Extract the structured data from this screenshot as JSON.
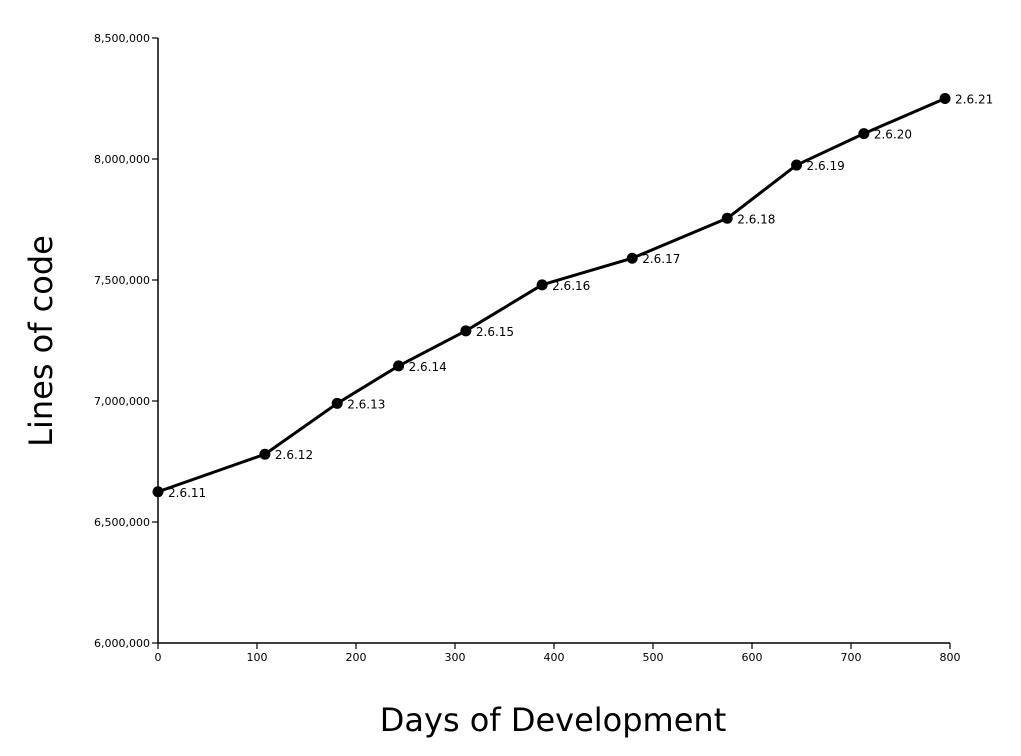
{
  "chart_data": {
    "type": "line",
    "title": "",
    "xlabel": "Days of Development",
    "ylabel": "Lines of code",
    "xlim": [
      0,
      800
    ],
    "ylim": [
      6000000,
      8500000
    ],
    "xticks": [
      0,
      100,
      200,
      300,
      400,
      500,
      600,
      700,
      800
    ],
    "xtick_labels": [
      "0",
      "100",
      "200",
      "300",
      "400",
      "500",
      "600",
      "700",
      "800"
    ],
    "yticks": [
      6000000,
      6500000,
      7000000,
      7500000,
      8000000,
      8500000
    ],
    "ytick_labels": [
      "6,000,000",
      "6,500,000",
      "7,000,000",
      "7,500,000",
      "8,000,000",
      "8,500,000"
    ],
    "grid": false,
    "series": [
      {
        "color": "#000000",
        "points": [
          {
            "x": 0,
            "y": 6625000,
            "label": "2.6.11"
          },
          {
            "x": 108,
            "y": 6780000,
            "label": "2.6.12"
          },
          {
            "x": 181,
            "y": 6990000,
            "label": "2.6.13"
          },
          {
            "x": 243,
            "y": 7145000,
            "label": "2.6.14"
          },
          {
            "x": 311,
            "y": 7290000,
            "label": "2.6.15"
          },
          {
            "x": 388,
            "y": 7480000,
            "label": "2.6.16"
          },
          {
            "x": 479,
            "y": 7590000,
            "label": "2.6.17"
          },
          {
            "x": 575,
            "y": 7755000,
            "label": "2.6.18"
          },
          {
            "x": 645,
            "y": 7975000,
            "label": "2.6.19"
          },
          {
            "x": 713,
            "y": 8105000,
            "label": "2.6.20"
          },
          {
            "x": 795,
            "y": 8250000,
            "label": "2.6.21"
          }
        ]
      }
    ]
  }
}
